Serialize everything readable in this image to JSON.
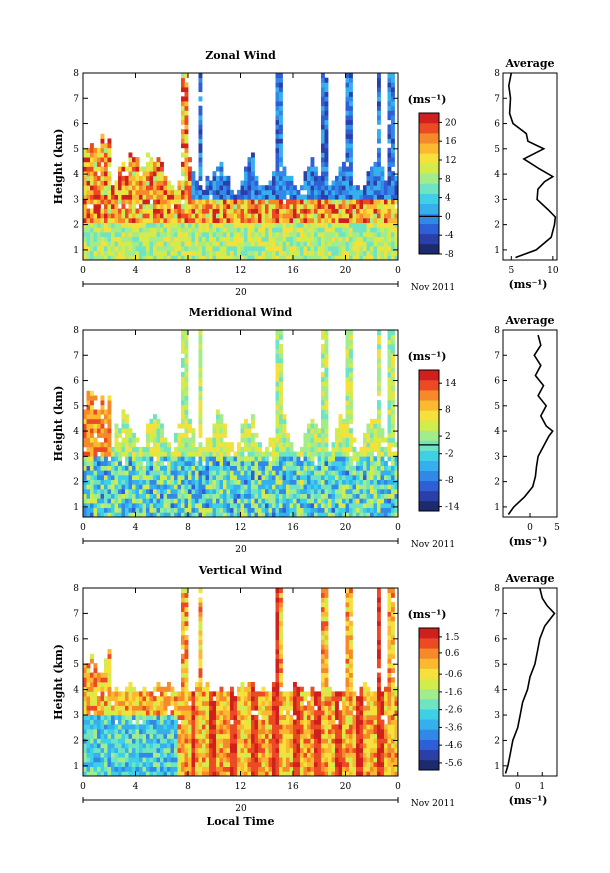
{
  "colormap": [
    "#1c2a6e",
    "#2a3fa8",
    "#2e5fd6",
    "#3288e6",
    "#35b0ec",
    "#3ed0e6",
    "#6ee4c2",
    "#a2ec8c",
    "#d2ec4c",
    "#f5e03c",
    "#fbb830",
    "#f68a2a",
    "#ec4a24",
    "#d0201e"
  ],
  "chart_data": [
    {
      "type": "heatmap",
      "title": "Zonal Wind",
      "xlabel": "",
      "ylabel": "Height (km)",
      "xlim": [
        0,
        24
      ],
      "ylim": [
        0.6,
        8
      ],
      "xticks": [
        "0",
        "4",
        "8",
        "12",
        "16",
        "20",
        "0"
      ],
      "yticks": [
        "1",
        "2",
        "3",
        "4",
        "5",
        "6",
        "7",
        "8"
      ],
      "date_label": "20",
      "month_label": "Nov 2011",
      "colorbar": {
        "unit": "(ms⁻¹)",
        "range": [
          -8,
          22
        ],
        "ticks": [
          "20",
          "16",
          "12",
          "8",
          "4",
          "0",
          "-4",
          "-8"
        ],
        "contour_level": 0
      },
      "average_profile": {
        "title": "Average",
        "xlabel": "(ms⁻¹)",
        "xticks": [
          "5",
          "10"
        ],
        "xlim": [
          4,
          10.5
        ],
        "height": [
          0.7,
          1.0,
          1.5,
          2.0,
          2.3,
          2.6,
          3.0,
          3.4,
          3.7,
          3.9,
          4.2,
          4.6,
          5.0,
          5.3,
          5.6,
          6.0,
          6.4,
          7.0,
          7.5,
          8.0
        ],
        "value": [
          5.5,
          8.0,
          9.8,
          10.2,
          10.3,
          9.4,
          8.1,
          8.2,
          9.0,
          10.0,
          8.4,
          6.5,
          8.9,
          7.0,
          6.8,
          5.2,
          4.8,
          4.9,
          4.7,
          5.0
        ]
      }
    },
    {
      "type": "heatmap",
      "title": "Meridional Wind",
      "xlabel": "",
      "ylabel": "Height (km)",
      "xlim": [
        0,
        24
      ],
      "ylim": [
        0.6,
        8
      ],
      "xticks": [
        "0",
        "4",
        "8",
        "12",
        "16",
        "20",
        "0"
      ],
      "yticks": [
        "1",
        "2",
        "3",
        "4",
        "5",
        "6",
        "7",
        "8"
      ],
      "date_label": "20",
      "month_label": "Nov 2011",
      "colorbar": {
        "unit": "(ms⁻¹)",
        "range": [
          -15,
          17
        ],
        "ticks": [
          "14",
          "8",
          "2",
          "-2",
          "-8",
          "-14"
        ],
        "contour_level": 0
      },
      "average_profile": {
        "title": "Average",
        "xlabel": "(ms⁻¹)",
        "xticks": [
          "0",
          "5"
        ],
        "xlim": [
          -5,
          5
        ],
        "height": [
          0.7,
          1.0,
          1.4,
          1.8,
          2.2,
          2.6,
          3.0,
          3.4,
          3.8,
          4.0,
          4.2,
          4.6,
          5.0,
          5.4,
          5.8,
          6.2,
          6.6,
          7.0,
          7.4,
          7.8
        ],
        "value": [
          -4.0,
          -3.0,
          -1.0,
          0.5,
          1.0,
          1.2,
          1.5,
          2.5,
          3.5,
          4.2,
          3.0,
          2.0,
          3.0,
          1.5,
          2.5,
          1.0,
          2.0,
          0.8,
          2.0,
          1.5
        ]
      }
    },
    {
      "type": "heatmap",
      "title": "Vertical Wind",
      "xlabel": "Local Time",
      "ylabel": "Height (km)",
      "xlim": [
        0,
        24
      ],
      "ylim": [
        0.6,
        8
      ],
      "xticks": [
        "0",
        "4",
        "8",
        "12",
        "16",
        "20",
        "0"
      ],
      "yticks": [
        "1",
        "2",
        "3",
        "4",
        "5",
        "6",
        "7",
        "8"
      ],
      "date_label": "20",
      "month_label": "Nov 2011",
      "colorbar": {
        "unit": "(ms⁻¹)",
        "range": [
          -6,
          2
        ],
        "ticks": [
          "1.5",
          "0.6",
          "-0.6",
          "-1.6",
          "-2.6",
          "-3.6",
          "-4.6",
          "-5.6"
        ]
      },
      "average_profile": {
        "title": "Average",
        "xlabel": "(ms⁻¹)",
        "xticks": [
          "0",
          "1"
        ],
        "xlim": [
          -0.6,
          1.6
        ],
        "height": [
          0.7,
          1.0,
          1.5,
          2.0,
          2.5,
          3.0,
          3.5,
          4.0,
          4.5,
          5.0,
          5.5,
          6.0,
          6.5,
          7.0,
          7.3,
          7.6,
          8.0
        ],
        "value": [
          -0.5,
          -0.4,
          -0.3,
          -0.2,
          0.0,
          0.1,
          0.2,
          0.4,
          0.5,
          0.7,
          0.8,
          0.9,
          1.1,
          1.5,
          1.2,
          1.0,
          0.9
        ]
      }
    }
  ]
}
